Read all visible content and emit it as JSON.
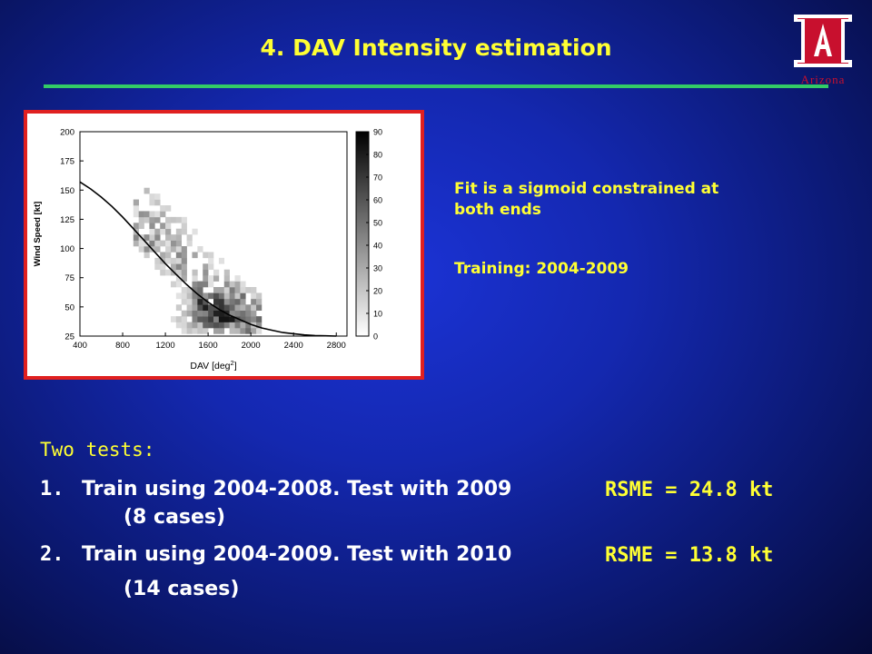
{
  "slide": {
    "title": "4. DAV Intensity estimation",
    "logo_text": "Arizona",
    "note1": "Fit is a sigmoid constrained at",
    "note2": "both ends",
    "training": "Training: 2004-2009",
    "tests_header": "Two tests:",
    "test1_num": "1.",
    "test1_text": "Train using 2004-2008.  Test with 2009",
    "test1_rsme": "RSME = 24.8 kt",
    "test1_cases": "(8 cases)",
    "test2_num": "2.",
    "test2_text": "Train using 2004-2009.  Test with 2010",
    "test2_rsme": "RSME = 13.8 kt",
    "test2_cases": "(14 cases)"
  },
  "colors": {
    "accent": "#ffff33",
    "rule": "#33cc66",
    "frame": "#e02020",
    "logo": "#c8102e"
  },
  "chart_data": {
    "type": "heatmap",
    "xlabel": "DAV [deg",
    "xlabel_sup": "2",
    "xlabel_end": "]",
    "ylabel": "Wind Speed [kt]",
    "xlim": [
      400,
      2900
    ],
    "ylim": [
      25,
      200
    ],
    "xticks": [
      "400",
      "800",
      "1200",
      "1600",
      "2000",
      "2400",
      "2800"
    ],
    "yticks": [
      "25",
      "50",
      "75",
      "100",
      "125",
      "150",
      "175",
      "200"
    ],
    "colorbar": {
      "min": 0,
      "max": 90,
      "ticks": [
        "0",
        "10",
        "20",
        "30",
        "40",
        "50",
        "60",
        "70",
        "80",
        "90"
      ]
    },
    "fit_curve": {
      "x": [
        400,
        500,
        600,
        700,
        800,
        900,
        1000,
        1100,
        1200,
        1300,
        1400,
        1500,
        1600,
        1700,
        1800,
        1900,
        2000,
        2100,
        2200,
        2300,
        2400,
        2500,
        2600,
        2700,
        2800
      ],
      "y": [
        157,
        151,
        144,
        136,
        127,
        117,
        107,
        97,
        87,
        78,
        69,
        61,
        54,
        48,
        43,
        39,
        35,
        32,
        30,
        28,
        27,
        26,
        25.5,
        25.2,
        25
      ]
    },
    "density_summary": "2D histogram of counts; highest density (~60-90) near DAV 1400-1900, wind 30-50 kt"
  }
}
